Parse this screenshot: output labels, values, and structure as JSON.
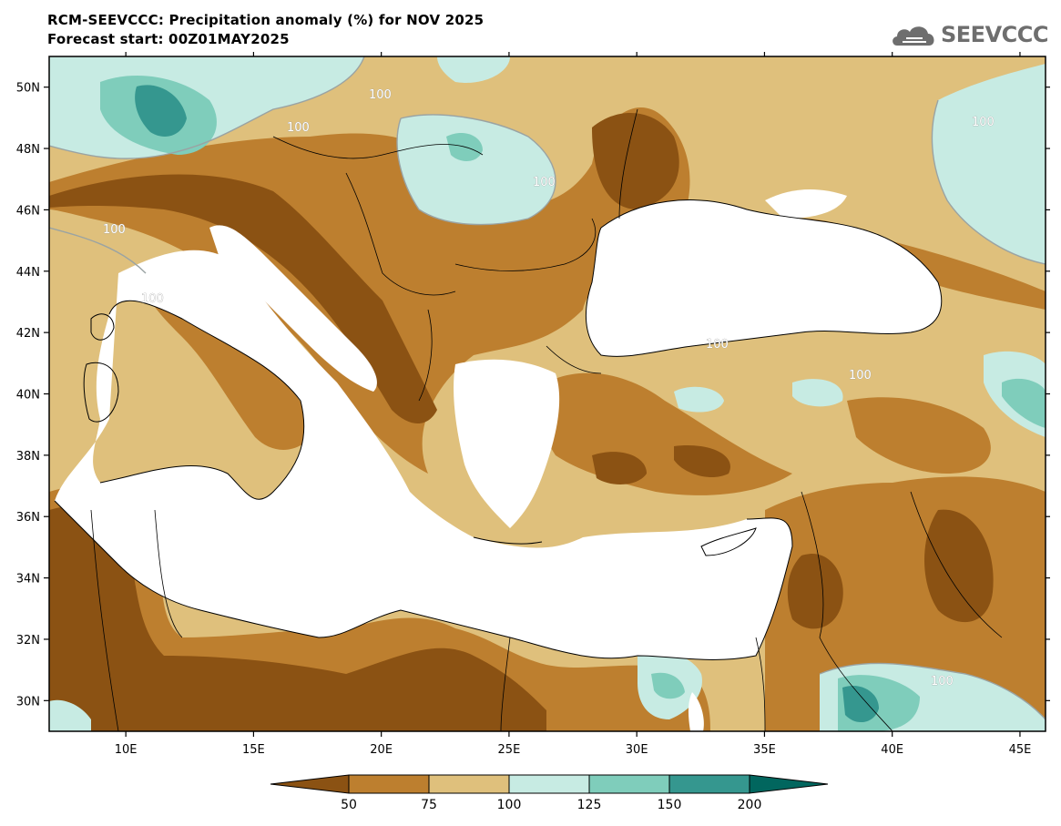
{
  "header": {
    "title": "RCM-SEEVCCC: Precipitation anomaly (%) for NOV 2025",
    "subtitle": "Forecast start: 00Z01MAY2025",
    "logo_text": "SEEVCCC"
  },
  "map": {
    "lon_range": [
      7,
      46
    ],
    "lat_range": [
      29,
      51
    ],
    "lon_ticks": [
      "10E",
      "15E",
      "20E",
      "25E",
      "30E",
      "35E",
      "40E",
      "45E"
    ],
    "lat_ticks": [
      "50N",
      "48N",
      "46N",
      "44N",
      "42N",
      "40N",
      "38N",
      "36N",
      "34N",
      "32N",
      "30N"
    ],
    "contour_label": "100",
    "sea_color": "#ffffff"
  },
  "colorbar": {
    "colors": [
      "#8b5213",
      "#bd7f2f",
      "#dfc07c",
      "#c7ebe3",
      "#7fcdbb",
      "#35978f",
      "#01665e"
    ],
    "tick_labels": [
      "50",
      "75",
      "100",
      "125",
      "150",
      "200"
    ]
  }
}
